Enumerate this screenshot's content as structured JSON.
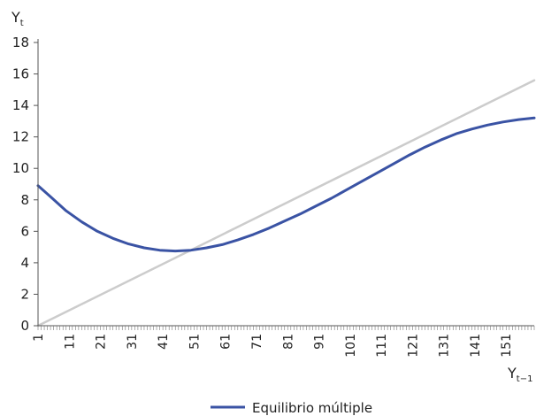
{
  "chart_data": {
    "type": "line",
    "ylabel": {
      "main": "Y",
      "sub": "t"
    },
    "xlabel": {
      "main": "Y",
      "sub": "t−1"
    },
    "ylim": [
      0,
      18
    ],
    "y_ticks": [
      0,
      2,
      4,
      6,
      8,
      10,
      12,
      14,
      16,
      18
    ],
    "xlim": [
      1,
      160
    ],
    "x_tick_labels": [
      "1",
      "11",
      "21",
      "31",
      "41",
      "51",
      "61",
      "71",
      "81",
      "91",
      "101",
      "111",
      "121",
      "131",
      "141",
      "151"
    ],
    "grid": false,
    "legend_position": "bottom-center",
    "series": [
      {
        "name": "Equilibrio múltiple",
        "color": "#3a53a4",
        "x": [
          1,
          5,
          10,
          15,
          20,
          25,
          30,
          35,
          40,
          45,
          50,
          55,
          60,
          65,
          70,
          75,
          80,
          85,
          90,
          95,
          100,
          105,
          110,
          115,
          120,
          125,
          130,
          135,
          140,
          145,
          150,
          155,
          160
        ],
        "values": [
          8.9,
          8.2,
          7.3,
          6.6,
          6.0,
          5.55,
          5.2,
          4.95,
          4.8,
          4.75,
          4.8,
          4.95,
          5.15,
          5.45,
          5.8,
          6.2,
          6.65,
          7.1,
          7.6,
          8.1,
          8.65,
          9.2,
          9.75,
          10.3,
          10.85,
          11.35,
          11.8,
          12.2,
          12.5,
          12.75,
          12.95,
          13.1,
          13.2
        ]
      },
      {
        "color": "#cccccc",
        "x": [
          1,
          160
        ],
        "values": [
          0,
          15.6
        ]
      }
    ]
  }
}
